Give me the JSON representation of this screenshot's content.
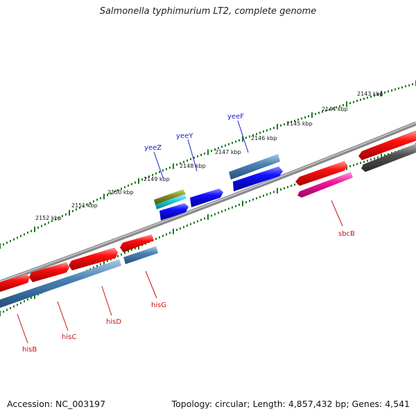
{
  "header": {
    "title": "Salmonella typhimurium LT2, complete genome"
  },
  "footer": {
    "accession": "Accession: NC_003197",
    "summary": "Topology: circular; Length: 4,857,432 bp; Genes: 4,541"
  },
  "ruler": {
    "unit_suffix": "kbp",
    "labels": [
      "2143 kbp",
      "2144 kbp",
      "2145 kbp",
      "2146 kbp",
      "2147 kbp",
      "2148 kbp",
      "2149 kbp",
      "2150 kbp",
      "2151 kbp",
      "2152 kbp"
    ]
  },
  "genes": {
    "forward_labels": [
      "yeeZ",
      "yeeY",
      "yeeF"
    ],
    "reverse_labels": [
      "sbcB",
      "hisG",
      "hisD",
      "hisC",
      "hisB"
    ]
  },
  "colors": {
    "tick": "#1a7a1a",
    "backbone": "#6e6e6e",
    "red": "#e00000",
    "blue": "#0a0ae6",
    "steel": "#4a82b4",
    "magenta": "#e8189a",
    "olive": "#7a8a20",
    "cyan": "#20c8d8",
    "gray": "#4a4a4a",
    "forward_label": "#1a1ad0",
    "reverse_label": "#c81010"
  }
}
